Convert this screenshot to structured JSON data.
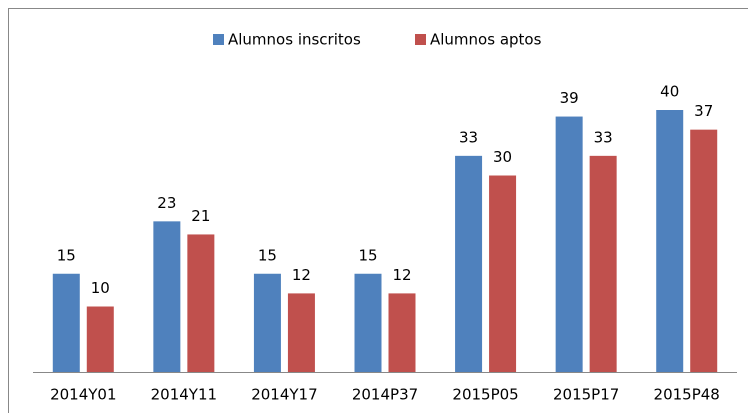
{
  "chart_data": {
    "type": "bar",
    "categories": [
      "2014Y01",
      "2014Y11",
      "2014Y17",
      "2014P37",
      "2015P05",
      "2015P17",
      "2015P48"
    ],
    "series": [
      {
        "name": "Alumnos inscritos",
        "color": "#4f81bd",
        "values": [
          15,
          23,
          15,
          15,
          33,
          39,
          40
        ]
      },
      {
        "name": "Alumnos aptos",
        "color": "#c0504d",
        "values": [
          10,
          21,
          12,
          12,
          30,
          33,
          37
        ]
      }
    ],
    "legend": "top"
  }
}
